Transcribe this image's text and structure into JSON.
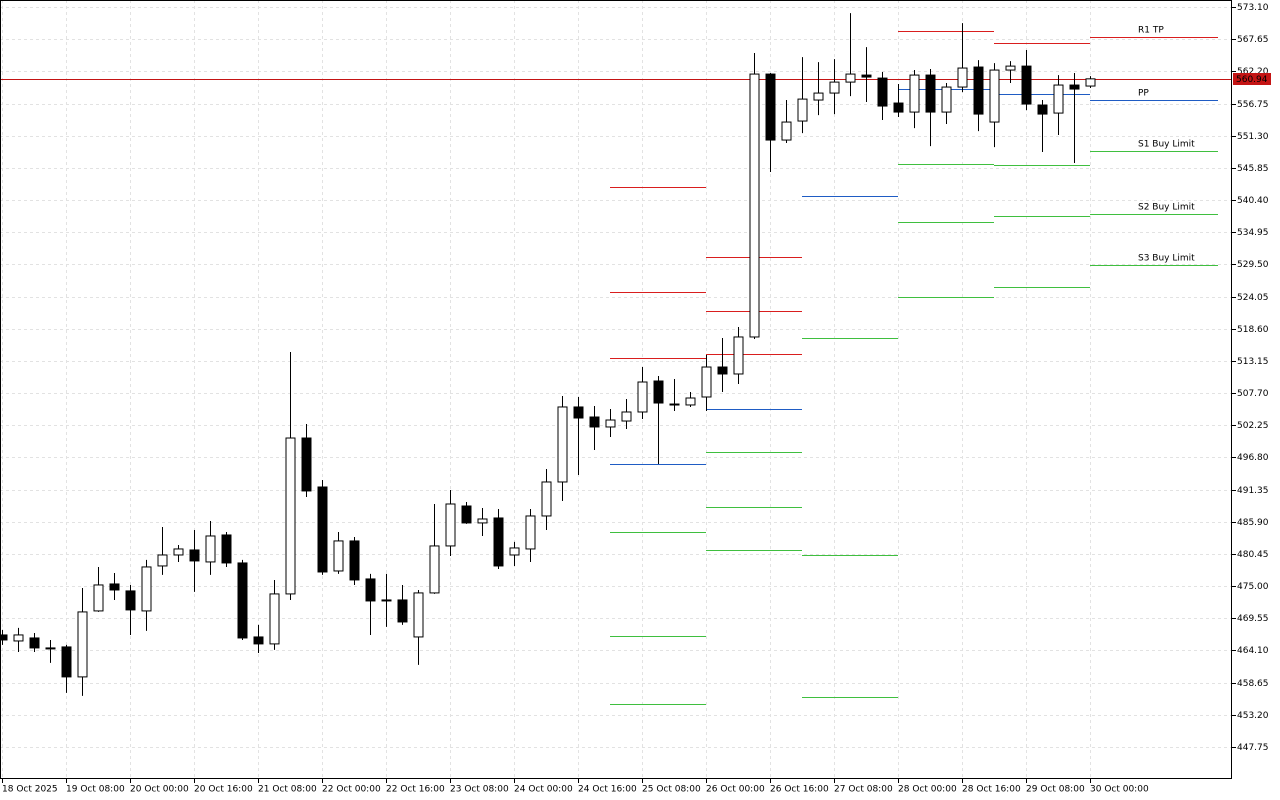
{
  "chart_data": {
    "type": "candlestick",
    "categories": [
      "18 Oct 2025",
      null,
      null,
      null,
      "19 Oct 08:00",
      null,
      null,
      null,
      "20 Oct 00:00",
      null,
      null,
      null,
      "20 Oct 16:00",
      null,
      null,
      null,
      "21 Oct 08:00",
      null,
      null,
      null,
      "22 Oct 00:00",
      null,
      null,
      null,
      "22 Oct 16:00",
      null,
      null,
      null,
      "23 Oct 08:00",
      null,
      null,
      null,
      "24 Oct 00:00",
      null,
      null,
      null,
      "24 Oct 16:00",
      null,
      null,
      null,
      "25 Oct 08:00",
      null,
      null,
      null,
      "26 Oct 00:00",
      null,
      null,
      null,
      "26 Oct 16:00",
      null,
      null,
      null,
      "27 Oct 08:00",
      null,
      null,
      null,
      "28 Oct 00:00",
      null,
      null,
      null,
      "28 Oct 16:00",
      null,
      null,
      null,
      "29 Oct 08:00",
      null,
      null,
      null,
      "30 Oct 00:00"
    ],
    "open": [
      466.71,
      465.69,
      466.2,
      464.51,
      464.68,
      459.6,
      470.78,
      475.35,
      474.17,
      470.78,
      478.4,
      480.26,
      481.11,
      479.08,
      483.65,
      478.91,
      466.37,
      465.19,
      473.66,
      500.08,
      491.78,
      477.55,
      482.64,
      476.2,
      472.64,
      472.64,
      466.37,
      473.83,
      481.79,
      488.56,
      485.69,
      486.53,
      480.26,
      481.28,
      486.87,
      492.63,
      505.34,
      503.64,
      501.95,
      502.96,
      504.49,
      509.74,
      505.84,
      505.68,
      507.03,
      512.11,
      510.93,
      517.2,
      561.75,
      550.57,
      553.79,
      557.35,
      558.53,
      560.39,
      561.58,
      561.07,
      556.84,
      555.31,
      561.58,
      555.31,
      559.55,
      562.94,
      553.62,
      562.43,
      563.1,
      556.5,
      555.14,
      559.89,
      559.72
    ],
    "high": [
      467.56,
      467.9,
      467.05,
      465.86,
      465.02,
      474.67,
      478.23,
      477.21,
      475.18,
      479.42,
      485.01,
      481.96,
      484.5,
      486.02,
      484.16,
      479.42,
      468.41,
      476.03,
      514.65,
      502.46,
      492.97,
      484.16,
      483.31,
      477.05,
      477.05,
      475.18,
      474.33,
      488.9,
      491.28,
      489.24,
      488.23,
      488.06,
      482.47,
      488.06,
      494.83,
      507.2,
      507.03,
      505.51,
      505.0,
      506.69,
      512.11,
      510.59,
      510.08,
      507.88,
      514.15,
      517.03,
      518.89,
      565.31,
      561.92,
      557.35,
      564.63,
      563.78,
      564.29,
      572.08,
      566.32,
      562.09,
      560.06,
      562.43,
      562.6,
      560.23,
      570.39,
      564.12,
      563.61,
      563.95,
      565.82,
      557.35,
      561.58,
      561.92,
      561.41
    ],
    "low": [
      465.02,
      463.83,
      463.83,
      461.97,
      456.89,
      456.38,
      470.61,
      472.64,
      466.71,
      467.39,
      476.88,
      479.08,
      474.0,
      476.88,
      478.23,
      465.86,
      463.66,
      464.17,
      472.64,
      490.09,
      476.88,
      477.05,
      475.18,
      466.71,
      468.07,
      468.41,
      461.63,
      473.66,
      480.09,
      485.52,
      483.48,
      477.89,
      478.4,
      479.08,
      484.5,
      489.41,
      493.82,
      498.05,
      500.25,
      501.61,
      503.3,
      495.68,
      504.66,
      505.34,
      504.66,
      507.88,
      509.23,
      516.86,
      545.15,
      550.06,
      551.75,
      554.8,
      554.97,
      558.02,
      557.01,
      553.96,
      554.47,
      552.6,
      549.55,
      553.28,
      558.7,
      552.09,
      549.38,
      560.23,
      555.65,
      548.54,
      551.42,
      546.67,
      559.38
    ],
    "close": [
      465.86,
      466.71,
      464.51,
      464.34,
      459.6,
      470.61,
      475.18,
      474.33,
      470.95,
      478.23,
      480.26,
      481.28,
      479.25,
      483.48,
      478.91,
      466.2,
      465.19,
      473.66,
      500.08,
      491.11,
      477.38,
      482.64,
      476.03,
      472.47,
      472.47,
      468.91,
      473.83,
      481.79,
      488.9,
      485.69,
      486.36,
      478.4,
      481.45,
      486.87,
      492.63,
      505.34,
      503.47,
      501.95,
      503.13,
      504.49,
      509.57,
      506.01,
      505.68,
      506.86,
      512.11,
      510.93,
      517.2,
      561.75,
      550.57,
      553.62,
      557.51,
      558.53,
      560.39,
      561.75,
      561.24,
      556.33,
      555.31,
      561.58,
      555.31,
      559.55,
      562.77,
      554.97,
      562.43,
      563.1,
      556.67,
      554.97,
      559.89,
      559.21,
      560.94
    ],
    "bull_color": "#ffffff",
    "bear_color": "#000000",
    "series": [
      {
        "name": "R1 TP",
        "color": "#d91e1e",
        "values": [
          null,
          null,
          null,
          null,
          null,
          null,
          null,
          null,
          null,
          null,
          null,
          null,
          null,
          null,
          null,
          null,
          null,
          null,
          null,
          null,
          null,
          null,
          null,
          null,
          null,
          null,
          null,
          null,
          null,
          null,
          null,
          null,
          null,
          null,
          null,
          null,
          null,
          null,
          513.64,
          513.64,
          513.64,
          513.64,
          513.64,
          513.64,
          514.32,
          514.32,
          514.32,
          514.32,
          514.32,
          514.32,
          null,
          null,
          null,
          null,
          null,
          null,
          569.03,
          569.03,
          569.03,
          569.03,
          569.03,
          569.03,
          567.0,
          567.0,
          567.0,
          567.0,
          567.0,
          567.0,
          568.02
        ]
      },
      {
        "color": "#d91e1e",
        "values": [
          null,
          null,
          null,
          null,
          null,
          null,
          null,
          null,
          null,
          null,
          null,
          null,
          null,
          null,
          null,
          null,
          null,
          null,
          null,
          null,
          null,
          null,
          null,
          null,
          null,
          null,
          null,
          null,
          null,
          null,
          null,
          null,
          null,
          null,
          null,
          null,
          null,
          null,
          524.82,
          524.82,
          524.82,
          524.82,
          524.82,
          524.82,
          521.6,
          521.6,
          521.6,
          521.6,
          521.6,
          521.6,
          null,
          null,
          null,
          null,
          null,
          null,
          null,
          null,
          null,
          null,
          null,
          null,
          null,
          null,
          null,
          null,
          null,
          null,
          null
        ]
      },
      {
        "color": "#d91e1e",
        "values": [
          null,
          null,
          null,
          null,
          null,
          null,
          null,
          null,
          null,
          null,
          null,
          null,
          null,
          null,
          null,
          null,
          null,
          null,
          null,
          null,
          null,
          null,
          null,
          null,
          null,
          null,
          null,
          null,
          null,
          null,
          null,
          null,
          null,
          null,
          null,
          null,
          null,
          null,
          542.61,
          542.61,
          542.61,
          542.61,
          542.61,
          542.61,
          530.75,
          530.75,
          530.75,
          530.75,
          530.75,
          530.75,
          null,
          null,
          null,
          null,
          null,
          null,
          null,
          null,
          null,
          null,
          null,
          null,
          null,
          null,
          null,
          null,
          null,
          null,
          null
        ]
      },
      {
        "name": "PP",
        "color": "#1f5cc4",
        "values": [
          null,
          null,
          null,
          null,
          null,
          null,
          null,
          null,
          null,
          null,
          null,
          null,
          null,
          null,
          null,
          null,
          null,
          null,
          null,
          null,
          null,
          null,
          null,
          null,
          null,
          null,
          null,
          null,
          null,
          null,
          null,
          null,
          null,
          null,
          null,
          null,
          null,
          null,
          495.68,
          495.68,
          495.68,
          495.68,
          495.68,
          495.68,
          505.0,
          505.0,
          505.0,
          505.0,
          505.0,
          505.0,
          541.08,
          541.08,
          541.08,
          541.08,
          541.08,
          541.08,
          559.21,
          559.21,
          559.21,
          559.21,
          559.21,
          559.21,
          558.36,
          558.36,
          558.36,
          558.36,
          558.36,
          558.36,
          557.35
        ]
      },
      {
        "name": "S1 Buy Limit",
        "color": "#3fbf3f",
        "values": [
          null,
          null,
          null,
          null,
          null,
          null,
          null,
          null,
          null,
          null,
          null,
          null,
          null,
          null,
          null,
          null,
          null,
          null,
          null,
          null,
          null,
          null,
          null,
          null,
          null,
          null,
          null,
          null,
          null,
          null,
          null,
          null,
          null,
          null,
          null,
          null,
          null,
          null,
          484.16,
          484.16,
          484.16,
          484.16,
          484.16,
          484.16,
          497.71,
          497.71,
          497.71,
          497.71,
          497.71,
          497.71,
          517.03,
          517.03,
          517.03,
          517.03,
          517.03,
          517.03,
          546.5,
          546.5,
          546.5,
          546.5,
          546.5,
          546.5,
          546.33,
          546.33,
          546.33,
          546.33,
          546.33,
          546.33,
          548.71
        ]
      },
      {
        "name": "S2 Buy Limit",
        "color": "#3fbf3f",
        "values": [
          null,
          null,
          null,
          null,
          null,
          null,
          null,
          null,
          null,
          null,
          null,
          null,
          null,
          null,
          null,
          null,
          null,
          null,
          null,
          null,
          null,
          null,
          null,
          null,
          null,
          null,
          null,
          null,
          null,
          null,
          null,
          null,
          null,
          null,
          null,
          null,
          null,
          null,
          466.54,
          466.54,
          466.54,
          466.54,
          466.54,
          466.54,
          488.4,
          488.4,
          488.4,
          488.4,
          488.4,
          488.4,
          480.26,
          480.26,
          480.26,
          480.26,
          480.26,
          480.26,
          536.68,
          536.68,
          536.68,
          536.68,
          536.68,
          536.68,
          537.69,
          537.69,
          537.69,
          537.69,
          537.69,
          537.69,
          538.03
        ]
      },
      {
        "name": "S3 Buy Limit",
        "color": "#3fbf3f",
        "values": [
          null,
          null,
          null,
          null,
          null,
          null,
          null,
          null,
          null,
          null,
          null,
          null,
          null,
          null,
          null,
          null,
          null,
          null,
          null,
          null,
          null,
          null,
          null,
          null,
          null,
          null,
          null,
          null,
          null,
          null,
          null,
          null,
          null,
          null,
          null,
          null,
          null,
          null,
          455.02,
          455.02,
          455.02,
          455.02,
          455.02,
          455.02,
          481.11,
          481.11,
          481.11,
          481.11,
          481.11,
          481.11,
          456.21,
          456.21,
          456.21,
          456.21,
          456.21,
          456.21,
          523.97,
          523.97,
          523.97,
          523.97,
          523.97,
          523.97,
          525.67,
          525.67,
          525.67,
          525.67,
          525.67,
          525.67,
          529.39
        ]
      }
    ],
    "last_price": 560.94,
    "last_price_color": "#c41414",
    "ylim": [
      442.3,
      574.3
    ],
    "yticks": [
      {
        "value": 573.1,
        "label": "573.10"
      },
      567.65,
      {
        "value": 562.2,
        "label": "562.20"
      },
      556.75,
      {
        "value": 551.3,
        "label": "551.30"
      },
      545.85,
      {
        "value": 540.4,
        "label": "540.40"
      },
      534.95,
      {
        "value": 529.5,
        "label": "529.50"
      },
      524.05,
      {
        "value": 518.6,
        "label": "518.60"
      },
      513.15,
      {
        "value": 507.7,
        "label": "507.70"
      },
      502.25,
      {
        "value": 496.8,
        "label": "496.80"
      },
      491.35,
      {
        "value": 485.9,
        "label": "485.90"
      },
      480.45,
      {
        "value": 475,
        "label": "475.00"
      },
      469.55,
      {
        "value": 464.1,
        "label": "464.10"
      },
      458.65,
      {
        "value": 453.2,
        "label": "453.20"
      },
      447.75
    ],
    "grid": true
  }
}
